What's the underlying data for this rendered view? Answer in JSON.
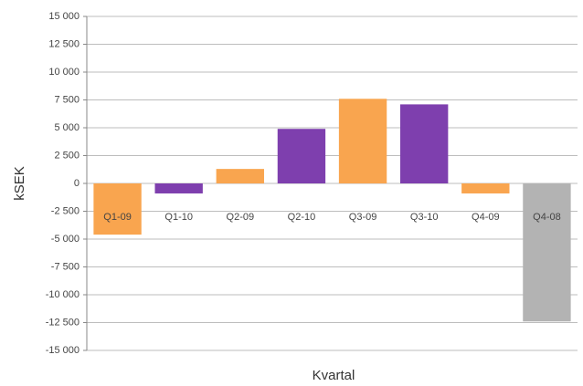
{
  "chart_data": {
    "type": "bar",
    "categories": [
      "Q1-09",
      "Q1-10",
      "Q2-09",
      "Q2-10",
      "Q3-09",
      "Q3-10",
      "Q4-09",
      "Q4-08"
    ],
    "values": [
      -4600,
      -900,
      1300,
      4900,
      7600,
      7100,
      -900,
      -12400
    ],
    "colors": [
      "#f9a54f",
      "#7e3fae",
      "#f9a54f",
      "#7e3fae",
      "#f9a54f",
      "#7e3fae",
      "#f9a54f",
      "#b3b3b3"
    ],
    "xlabel": "Kvartal",
    "ylabel": "kSEK",
    "ylim": [
      -15000,
      15000
    ],
    "yticks": [
      {
        "value": -15000,
        "label": "-15 000"
      },
      {
        "value": -12500,
        "label": "-12 500"
      },
      {
        "value": -10000,
        "label": "-10 000"
      },
      {
        "value": -7500,
        "label": "-7 500"
      },
      {
        "value": -5000,
        "label": "-5 000"
      },
      {
        "value": -2500,
        "label": "-2 500"
      },
      0,
      {
        "value": 2500,
        "label": "2 500"
      },
      {
        "value": 5000,
        "label": "5 000"
      },
      {
        "value": 7500,
        "label": "7 500"
      },
      {
        "value": 10000,
        "label": "10 000"
      },
      {
        "value": 12500,
        "label": "12 500"
      },
      {
        "value": 15000,
        "label": "15 000"
      }
    ],
    "grid": true
  }
}
